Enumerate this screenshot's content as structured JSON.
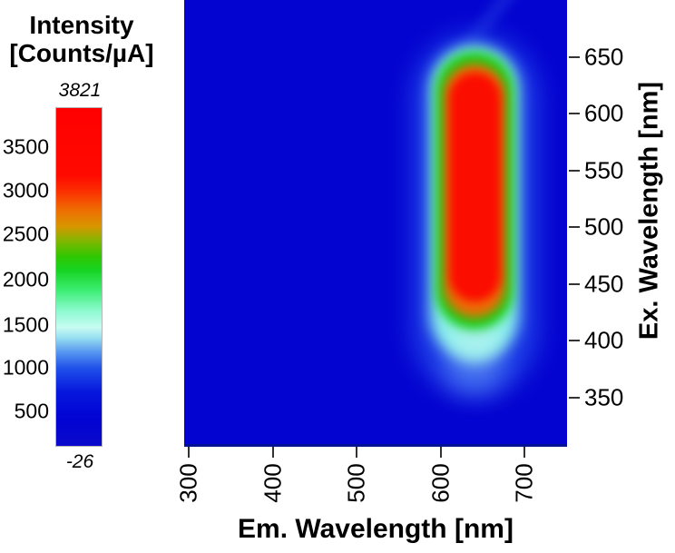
{
  "colorbar": {
    "title_line1": "Intensity",
    "title_line2": "[Counts/µA]",
    "max_label": "3821",
    "min_label": "-26",
    "ticks": [
      "3500",
      "3000",
      "2500",
      "2000",
      "1500",
      "1000",
      "500"
    ]
  },
  "x_axis": {
    "label": "Em. Wavelength [nm]",
    "ticks": [
      "300",
      "400",
      "500",
      "600",
      "700"
    ]
  },
  "y_axis": {
    "label": "Ex. Wavelength [nm]",
    "ticks": [
      "650",
      "600",
      "550",
      "500",
      "450",
      "400",
      "350"
    ]
  },
  "colors": {
    "plot_background": "#0404d0",
    "peak_core": "#ff0000",
    "tick_marks": "#333333",
    "text": "#000000"
  },
  "chart_data": {
    "type": "heatmap",
    "title": "",
    "xlabel": "Em. Wavelength [nm]",
    "ylabel": "Ex. Wavelength [nm]",
    "colorbar_label": "Intensity [Counts/µA]",
    "x_range_nm": [
      295,
      750
    ],
    "y_range_nm": [
      305,
      700
    ],
    "x_ticks": [
      300,
      400,
      500,
      600,
      700
    ],
    "y_ticks": [
      350,
      400,
      450,
      500,
      550,
      600,
      650
    ],
    "intensity_min": -26,
    "intensity_max": 3821,
    "colorbar_ticks": [
      500,
      1000,
      1500,
      2000,
      2500,
      3000,
      3500
    ],
    "colormap_stops": [
      {
        "value": -26,
        "color": "#0a0acc"
      },
      {
        "value": 500,
        "color": "#0715dd"
      },
      {
        "value": 1000,
        "color": "#4a85ee"
      },
      {
        "value": 1300,
        "color": "#c8fbf3"
      },
      {
        "value": 1950,
        "color": "#16d422"
      },
      {
        "value": 2500,
        "color": "#d89600"
      },
      {
        "value": 2800,
        "color": "#ef6c02"
      },
      {
        "value": 3100,
        "color": "#ff0a00"
      },
      {
        "value": 3821,
        "color": "#ff0000"
      }
    ],
    "background_intensity_approx": 0,
    "hotspot": {
      "description": "Single vertically elongated excitation-emission hotspot on uniform blue background",
      "em_center_nm": 640,
      "em_extent_nm": [
        595,
        690
      ],
      "ex_extent_nm": [
        365,
        655
      ],
      "core_em_extent_nm": [
        610,
        670
      ],
      "core_ex_extent_nm": [
        435,
        630
      ],
      "peak_intensity": 3821
    }
  }
}
